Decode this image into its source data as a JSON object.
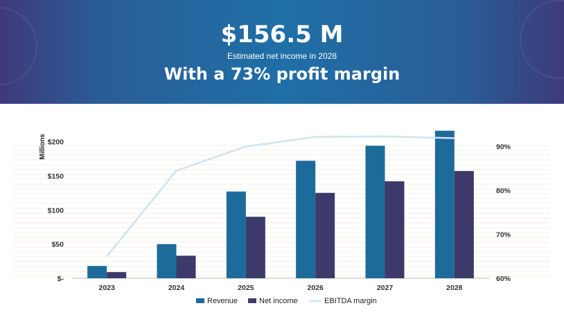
{
  "header": {
    "amount": "$156.5 M",
    "subtitle": "Estimated net income in 2028",
    "margin_text": "With a 73% profit margin"
  },
  "colors": {
    "revenue": "#1d6b9a",
    "net_income": "#3d3a6b",
    "ebitda": "#cfe3ef",
    "header_mid": "#1f6fa6",
    "header_edge": "#3d3a7a"
  },
  "chart_data": {
    "type": "bar",
    "title": "",
    "categories": [
      "2023",
      "2024",
      "2025",
      "2026",
      "2027",
      "2028"
    ],
    "series": [
      {
        "name": "Revenue",
        "kind": "bar",
        "axis": "left",
        "values": [
          18,
          50,
          127,
          172,
          194,
          216
        ]
      },
      {
        "name": "Net income",
        "kind": "bar",
        "axis": "left",
        "values": [
          9,
          33,
          90,
          125,
          142,
          157
        ]
      },
      {
        "name": "EBITDA margin",
        "kind": "line",
        "axis": "right",
        "values": [
          65,
          84.5,
          90,
          92.2,
          92.3,
          91.9
        ]
      }
    ],
    "ylabel": "Millions",
    "ylim": [
      0,
      225
    ],
    "yticks": [
      0,
      50,
      100,
      150,
      200
    ],
    "ytick_labels": [
      "$-",
      "$50",
      "$100",
      "$150",
      "$200"
    ],
    "y2lim": [
      60,
      95
    ],
    "y2ticks": [
      60,
      70,
      80,
      90
    ],
    "y2tick_labels": [
      "60%",
      "70%",
      "80%",
      "90%"
    ],
    "legend": [
      "Revenue",
      "Net income",
      "EBITDA margin"
    ],
    "legend_position": "bottom"
  }
}
